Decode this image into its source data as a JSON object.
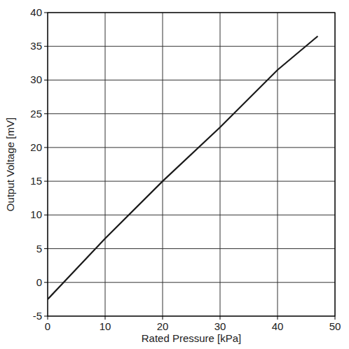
{
  "chart_data": {
    "type": "line",
    "x_label": "Rated Pressure [kPa]",
    "y_label": "Output Voltage [mV]",
    "x": [
      0,
      10,
      20,
      30,
      40,
      47
    ],
    "values": [
      -2.5,
      6.5,
      15,
      23,
      31.5,
      36.5
    ],
    "color": "#1a1a1a",
    "xlim": [
      0,
      50
    ],
    "xticks": [
      0,
      10,
      20,
      30,
      40,
      50
    ],
    "ylim": [
      -5,
      40
    ],
    "yticks": [
      -5,
      0,
      5,
      10,
      15,
      20,
      25,
      30,
      35,
      40
    ],
    "grid": true
  }
}
